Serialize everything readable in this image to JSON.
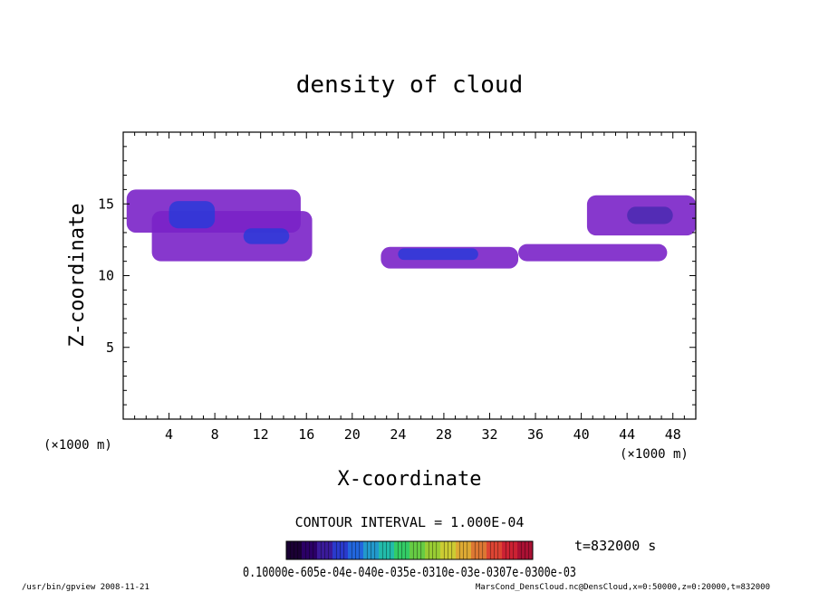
{
  "chart_data": {
    "type": "heatmap",
    "title": "density of cloud",
    "xlabel": "X-coordinate",
    "ylabel": "Z-coordinate",
    "x_unit_left": "(×1000 m)",
    "x_unit_right": "(×1000 m)",
    "xlim": [
      0,
      50
    ],
    "ylim": [
      0,
      20
    ],
    "x_ticks": [
      4,
      8,
      12,
      16,
      20,
      24,
      28,
      32,
      36,
      40,
      44,
      48
    ],
    "y_ticks": [
      5,
      10,
      15
    ],
    "contour_interval": "CONTOUR INTERVAL = 1.000E-04",
    "time_label": "t=832000 s",
    "colorbar_labels_text": "0.10000e-605e-04e-040e-035e-0310e-03e-0307e-0300e-03",
    "colorbar_colors": [
      "#1a0033",
      "#2b0066",
      "#3a1a99",
      "#2a3acc",
      "#2266dd",
      "#2299cc",
      "#22bbaa",
      "#33cc66",
      "#66cc44",
      "#99cc33",
      "#cccc33",
      "#ddaa33",
      "#dd7733",
      "#dd4433",
      "#cc2233",
      "#aa1133"
    ],
    "footer_left": "/usr/bin/gpview   2008-11-21",
    "footer_right": "MarsCond_DensCloud.nc@DensCloud,x=0:50000,z=0:20000,t=832000",
    "cloud_regions": [
      {
        "x": [
          0.3,
          15.5
        ],
        "z": [
          13.0,
          16.0
        ],
        "level": "purple"
      },
      {
        "x": [
          2.5,
          16.5
        ],
        "z": [
          11.0,
          14.5
        ],
        "level": "purple"
      },
      {
        "x": [
          4.0,
          8.0
        ],
        "z": [
          13.3,
          15.2
        ],
        "level": "blue"
      },
      {
        "x": [
          10.5,
          14.5
        ],
        "z": [
          12.2,
          13.3
        ],
        "level": "blue"
      },
      {
        "x": [
          22.5,
          34.5
        ],
        "z": [
          10.5,
          12.0
        ],
        "level": "purple"
      },
      {
        "x": [
          24.0,
          31.0
        ],
        "z": [
          11.1,
          11.9
        ],
        "level": "blue"
      },
      {
        "x": [
          34.5,
          47.5
        ],
        "z": [
          11.0,
          12.2
        ],
        "level": "purple"
      },
      {
        "x": [
          40.5,
          50.0
        ],
        "z": [
          12.8,
          15.6
        ],
        "level": "purple"
      },
      {
        "x": [
          44.0,
          48.0
        ],
        "z": [
          13.6,
          14.8
        ],
        "level": "indigo"
      }
    ]
  }
}
